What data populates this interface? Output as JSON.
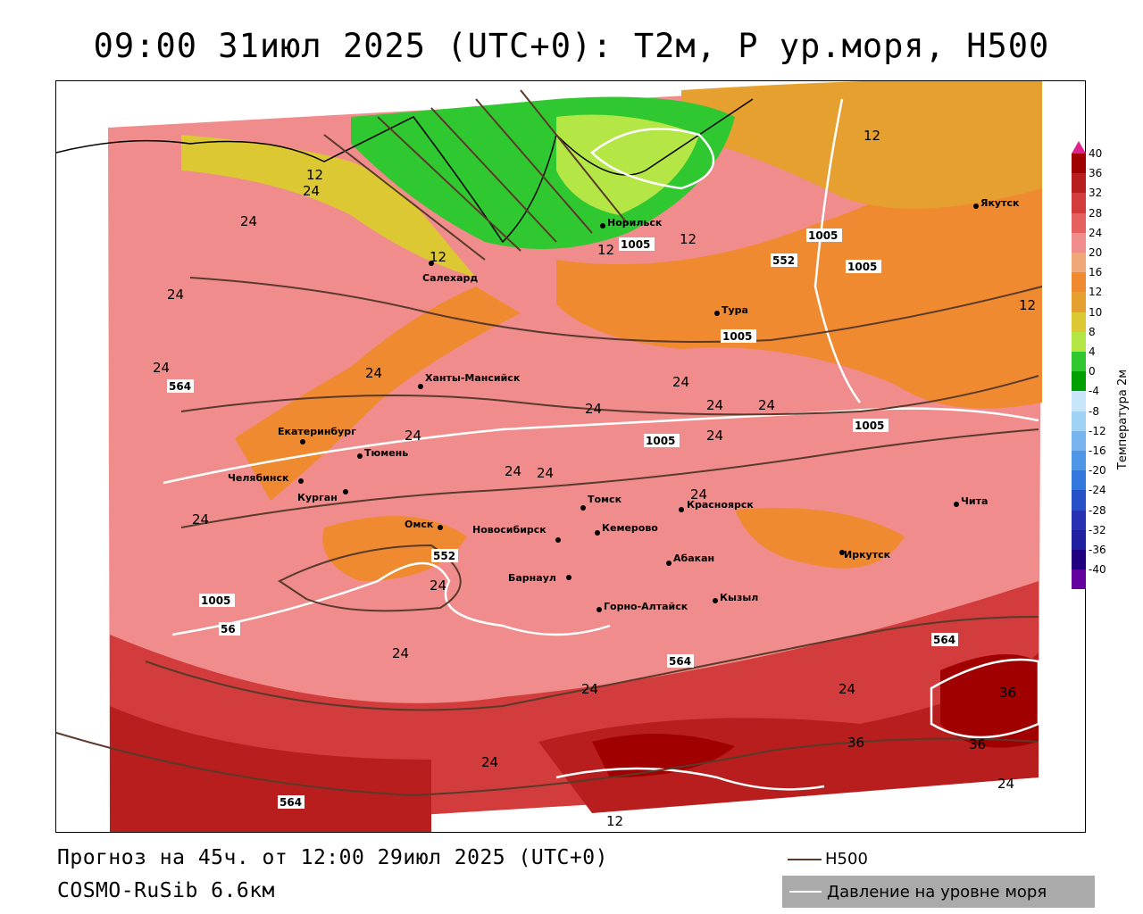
{
  "title": "09:00 31июл 2025 (UTC+0): T2м, P ур.моря, H500",
  "forecast": "Прогноз на 45ч. от 12:00 29июл 2025 (UTC+0)",
  "model": "COSMO-RuSib 6.6км",
  "legend": {
    "h500": "H500",
    "pressure": "Давление на уровне моря"
  },
  "colorbar": {
    "title": "Температура 2м",
    "ticks": [
      "40",
      "36",
      "32",
      "28",
      "24",
      "20",
      "16",
      "12",
      "10",
      "8",
      "4",
      "0",
      "-4",
      "-8",
      "-12",
      "-16",
      "-20",
      "-24",
      "-28",
      "-32",
      "-36",
      "-40"
    ],
    "colors": [
      "#a00000",
      "#b81e1e",
      "#d23c3c",
      "#e66060",
      "#f08c8c",
      "#f0a878",
      "#f08a30",
      "#e6a030",
      "#dcc832",
      "#b4e646",
      "#30c830",
      "#00a000",
      "#c8e6fa",
      "#a0d2f5",
      "#78b4ee",
      "#5096e6",
      "#3278dc",
      "#2850c8",
      "#2830b4",
      "#2020a0",
      "#200080",
      "#6400a0"
    ]
  },
  "cities": [
    {
      "name": "Норильск"
    },
    {
      "name": "Якутск"
    },
    {
      "name": "Салехард"
    },
    {
      "name": "Тура"
    },
    {
      "name": "Ханты-Мансийск"
    },
    {
      "name": "Екатеринбург"
    },
    {
      "name": "Тюмень"
    },
    {
      "name": "Челябинск"
    },
    {
      "name": "Курган"
    },
    {
      "name": "Омск"
    },
    {
      "name": "Томск"
    },
    {
      "name": "Новосибирск"
    },
    {
      "name": "Кемерово"
    },
    {
      "name": "Красноярск"
    },
    {
      "name": "Барнаул"
    },
    {
      "name": "Абакан"
    },
    {
      "name": "Иркутск"
    },
    {
      "name": "Чита"
    },
    {
      "name": "Горно-Алтайск"
    },
    {
      "name": "Кызыл"
    }
  ],
  "isotherm_labels": [
    "12",
    "12",
    "24",
    "24",
    "12",
    "24",
    "24",
    "24",
    "24",
    "24",
    "24",
    "24",
    "24",
    "24",
    "24",
    "24",
    "24",
    "24",
    "36",
    "36",
    "36",
    "12",
    "12",
    "12",
    "24",
    "24",
    "24",
    "24",
    "24",
    "24",
    "12"
  ],
  "h500_labels": [
    "552",
    "564",
    "564",
    "564",
    "564",
    "552",
    "56"
  ],
  "pressure_labels": [
    "1005",
    "1005",
    "1005",
    "1005",
    "1005",
    "1005",
    "1005"
  ]
}
